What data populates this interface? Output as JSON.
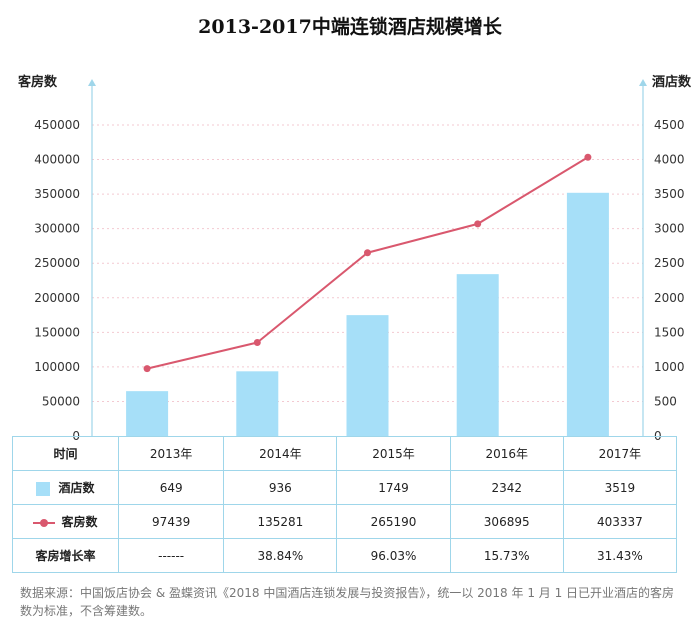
{
  "title": "2013-2017中端连锁酒店规模增长",
  "chart_data": {
    "type": "bar",
    "title": "2013-2017中端连锁酒店规模增长",
    "categories": [
      "2013年",
      "2014年",
      "2015年",
      "2016年",
      "2017年"
    ],
    "left_axis": {
      "label": "客房数",
      "ylim": [
        0,
        450000
      ],
      "ticks": [
        "0",
        "50000",
        "100000",
        "150000",
        "200000",
        "250000",
        "300000",
        "350000",
        "400000",
        "450000"
      ]
    },
    "right_axis": {
      "label": "酒店数",
      "ylim": [
        0,
        4500
      ],
      "ticks": [
        "0",
        "500",
        "1000",
        "1500",
        "2000",
        "2500",
        "3000",
        "3500",
        "4000",
        "4500"
      ]
    },
    "series": [
      {
        "name": "酒店数",
        "type": "bar",
        "axis": "right",
        "color": "#a6dff8",
        "values": [
          649,
          936,
          1749,
          2342,
          3519
        ]
      },
      {
        "name": "客房数",
        "type": "line",
        "axis": "left",
        "color": "#d9586e",
        "values": [
          97439,
          135281,
          265190,
          306895,
          403337
        ]
      }
    ],
    "growth_row_label": "客房增长率",
    "growth_rates": [
      "------",
      "38.84%",
      "96.03%",
      "15.73%",
      "31.43%"
    ],
    "grid": true,
    "legend": "table-rows"
  },
  "table": {
    "time_label": "时间",
    "hotels_label": "酒店数",
    "rooms_label": "客房数",
    "growth_label": "客房增长率",
    "years": [
      "2013年",
      "2014年",
      "2015年",
      "2016年",
      "2017年"
    ],
    "hotels": [
      "649",
      "936",
      "1749",
      "2342",
      "3519"
    ],
    "rooms": [
      "97439",
      "135281",
      "265190",
      "306895",
      "403337"
    ],
    "growth": [
      "------",
      "38.84%",
      "96.03%",
      "15.73%",
      "31.43%"
    ]
  },
  "footnote": "数据来源：中国饭店协会 & 盈蝶资讯《2018 中国酒店连锁发展与投资报告》，统一以 2018 年 1 月 1 日已开业酒店的客房数为标准，不含筹建数。"
}
